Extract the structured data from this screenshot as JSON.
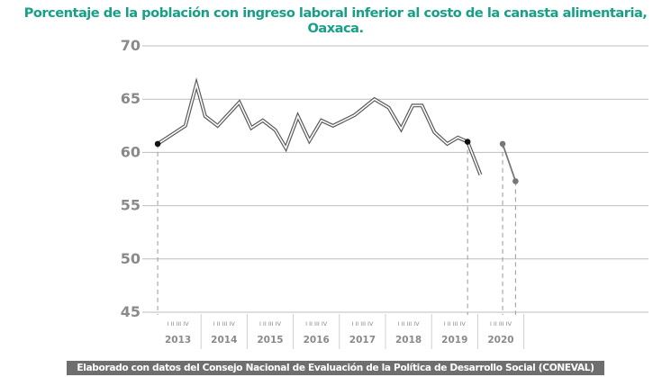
{
  "colors": {
    "title": "#17a085",
    "footer_bg": "#6e6e6e",
    "grid": "#bdbdbd",
    "line": "#5a5a5a",
    "marker_dark": "#111111",
    "marker_gray": "#777777"
  },
  "chart_data": {
    "type": "line",
    "title": "Porcentaje de la población con ingreso laboral inferior al costo de la canasta alimentaria, Oaxaca.",
    "xlabel": "",
    "ylabel": "",
    "ylim": [
      45,
      70
    ],
    "yticks": [
      70,
      65,
      60,
      55,
      50,
      45
    ],
    "xlim": [
      2013,
      2021
    ],
    "year_labels": [
      "2013",
      "2014",
      "2015",
      "2016",
      "2017",
      "2018",
      "2019",
      "2020"
    ],
    "quarter_label": "I II III IV",
    "grid": true,
    "series": [
      {
        "style": "double-outline",
        "x": [
          2013.06,
          2013.66,
          2013.9,
          2014.09,
          2014.36,
          2014.83,
          2015.09,
          2015.34,
          2015.61,
          2015.84,
          2016.1,
          2016.35,
          2016.61,
          2016.86,
          2017.33,
          2017.76,
          2018.07,
          2018.34,
          2018.59,
          2018.79,
          2019.06,
          2019.34,
          2019.57,
          2019.78,
          2020.06
        ],
        "y": [
          60.8,
          62.5,
          66.4,
          63.4,
          62.5,
          64.7,
          62.3,
          63.0,
          62.1,
          60.4,
          63.4,
          61.1,
          63.0,
          62.5,
          63.5,
          65.0,
          64.2,
          62.2,
          64.4,
          64.4,
          61.9,
          60.8,
          61.4,
          61.0,
          57.9
        ],
        "markers": [
          {
            "x": 2013.06,
            "y": 60.8
          },
          {
            "x": 2019.78,
            "y": 61.0
          }
        ]
      },
      {
        "style": "solid-gray",
        "x": [
          2020.54,
          2020.82
        ],
        "y": [
          60.8,
          57.3
        ],
        "markers": [
          {
            "x": 2020.54,
            "y": 60.8
          },
          {
            "x": 2020.82,
            "y": 57.3
          }
        ]
      }
    ]
  },
  "footer": "Elaborado con datos del Consejo Nacional de Evaluación de la Política de Desarrollo Social (CONEVAL)"
}
